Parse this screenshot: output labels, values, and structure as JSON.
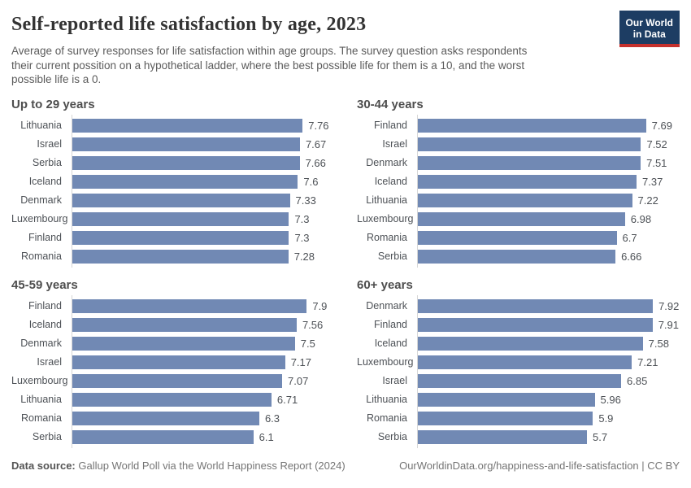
{
  "header": {
    "title": "Self-reported life satisfaction by age, 2023",
    "subtitle_lines": [
      "Average of survey responses for life satisfaction within age groups. The survey question asks respondents",
      "their current possition on a hypothetical ladder, where the best possible life for them is a 10, and the worst",
      "possible life is a 0."
    ],
    "logo": {
      "line1": "Our World",
      "line2": "in Data"
    }
  },
  "chart_data": {
    "type": "bar",
    "orientation": "horizontal",
    "value_range": [
      0,
      10
    ],
    "grid": false,
    "legend": "none",
    "bar_color": "#7189b4",
    "panels": [
      {
        "title": "Up to 29 years",
        "categories": [
          "Lithuania",
          "Israel",
          "Serbia",
          "Iceland",
          "Denmark",
          "Luxembourg",
          "Finland",
          "Romania"
        ],
        "values": [
          7.76,
          7.67,
          7.66,
          7.6,
          7.33,
          7.3,
          7.3,
          7.28
        ]
      },
      {
        "title": "30-44 years",
        "categories": [
          "Finland",
          "Israel",
          "Denmark",
          "Iceland",
          "Lithuania",
          "Luxembourg",
          "Romania",
          "Serbia"
        ],
        "values": [
          7.69,
          7.52,
          7.51,
          7.37,
          7.22,
          6.98,
          6.7,
          6.66
        ]
      },
      {
        "title": "45-59 years",
        "categories": [
          "Finland",
          "Iceland",
          "Denmark",
          "Israel",
          "Luxembourg",
          "Lithuania",
          "Romania",
          "Serbia"
        ],
        "values": [
          7.9,
          7.56,
          7.5,
          7.17,
          7.07,
          6.71,
          6.3,
          6.1
        ]
      },
      {
        "title": "60+ years",
        "categories": [
          "Denmark",
          "Finland",
          "Iceland",
          "Luxembourg",
          "Israel",
          "Lithuania",
          "Romania",
          "Serbia"
        ],
        "values": [
          7.92,
          7.91,
          7.58,
          7.21,
          6.85,
          5.96,
          5.9,
          5.7
        ]
      }
    ]
  },
  "footer": {
    "source_label": "Data source:",
    "source_text": " Gallup World Poll via the World Happiness Report (2024)",
    "rights": "OurWorldinData.org/happiness-and-life-satisfaction | CC BY"
  },
  "colors": {
    "bar": "#7189b4",
    "axis": "#d6d6d6",
    "logo_navy": "#1d3d63",
    "logo_red": "#c5312d"
  }
}
